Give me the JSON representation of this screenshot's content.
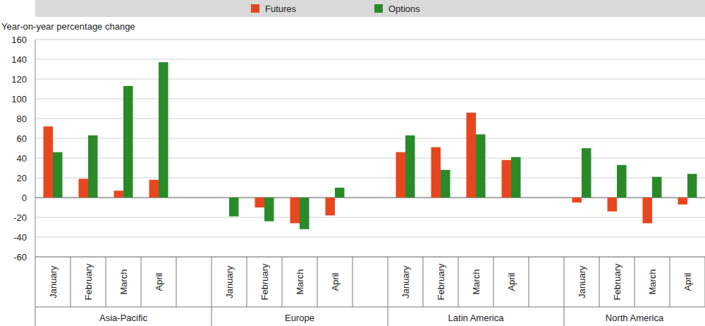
{
  "chart_data": {
    "type": "bar",
    "y_label": "Year-on-year percentage change",
    "categories": [
      "January",
      "February",
      "March",
      "April",
      "January",
      "February",
      "March",
      "April",
      "January",
      "February",
      "March",
      "April",
      "January",
      "February",
      "March",
      "April"
    ],
    "groups": [
      "Asia-Pacific",
      "Europe",
      "Latin America",
      "North America"
    ],
    "series": [
      {
        "name": "Futures",
        "color": "#e8461e",
        "values": [
          72,
          19,
          7,
          18,
          0,
          -10,
          -26,
          -18,
          46,
          51,
          86,
          38,
          -5,
          -14,
          -26,
          -7
        ]
      },
      {
        "name": "Options",
        "color": "#2a8a2a",
        "values": [
          46,
          63,
          113,
          137,
          -19,
          -24,
          -32,
          10,
          63,
          28,
          64,
          41,
          50,
          33,
          21,
          24
        ]
      }
    ],
    "ylim": [
      -60,
      160
    ],
    "yticks": [
      -60,
      -40,
      -20,
      0,
      20,
      40,
      60,
      80,
      100,
      120,
      140,
      160
    ],
    "grid": true,
    "legend": "top"
  }
}
